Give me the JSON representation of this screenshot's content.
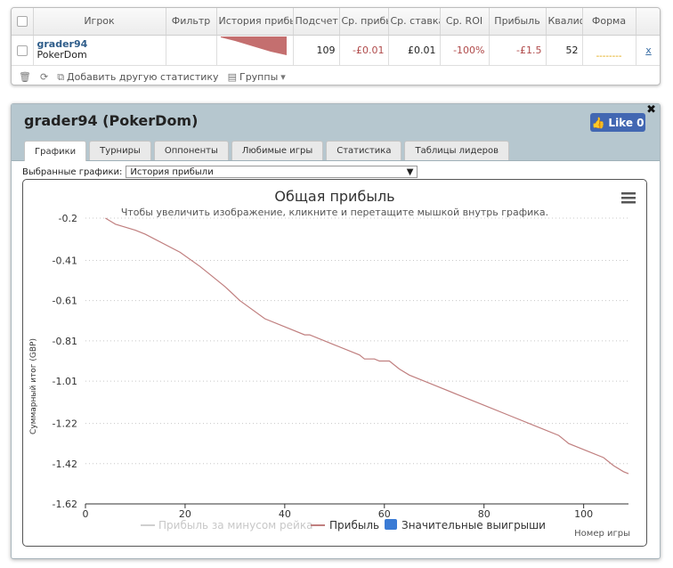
{
  "stats_table": {
    "headers": [
      "Игрок",
      "Фильтр",
      "История прибыль",
      "Подсчет",
      "Ср. прибыль",
      "Ср. ставка",
      "Ср. ROI",
      "Прибыль",
      "Квалиф",
      "Форма"
    ],
    "row": {
      "player": "grader94",
      "site": "PokerDom",
      "filter": "",
      "count": "109",
      "avg_profit": "-£0.01",
      "avg_stake": "£0.01",
      "avg_roi": "-100%",
      "profit": "-£1.5",
      "qualif": "52",
      "form": "--------",
      "remove": "x"
    },
    "footer": {
      "add_stat": "Добавить другую статистику",
      "groups": "Группы"
    }
  },
  "panel": {
    "title": "grader94 (PokerDom)",
    "like_label": "Like 0",
    "tabs": [
      "Графики",
      "Турниры",
      "Оппоненты",
      "Любимые игры",
      "Статистика",
      "Таблицы лидеров"
    ],
    "selector_label": "Выбранные графики:",
    "selector_value": "История прибыли"
  },
  "colors": {
    "profit_line": "#c07f7f",
    "rake_line": "#cfcfcf",
    "big_wins": "#3a7bd5",
    "header_bg": "#b6c7cf"
  },
  "chart_data": {
    "type": "line",
    "title": "Общая прибыль",
    "subtitle": "Чтобы увеличить изображение, кликните и перетащите мышкой внутрь графика.",
    "xlabel": "Номер игры",
    "ylabel": "Суммарный итог (GBP)",
    "xlim": [
      0,
      109
    ],
    "ylim": [
      -1.62,
      -0.2
    ],
    "x_ticks": [
      0,
      20,
      40,
      60,
      80,
      100
    ],
    "y_ticks": [
      -0.2,
      -0.41,
      -0.61,
      -0.81,
      -1.01,
      -1.22,
      -1.42,
      -1.62
    ],
    "grid": true,
    "legend_position": "bottom",
    "legend": [
      "Прибыль за минусом рейка",
      "Прибыль",
      "Значительные выигрыши"
    ],
    "series": [
      {
        "name": "Прибыль",
        "x": [
          4,
          6,
          10,
          12,
          19,
          23,
          25,
          28,
          31,
          36,
          40,
          44,
          45,
          50,
          55,
          56,
          58,
          59,
          61,
          63,
          65,
          70,
          75,
          80,
          85,
          90,
          95,
          97,
          104,
          106,
          108,
          109
        ],
        "y": [
          -0.2,
          -0.23,
          -0.26,
          -0.28,
          -0.37,
          -0.44,
          -0.48,
          -0.54,
          -0.61,
          -0.7,
          -0.74,
          -0.78,
          -0.78,
          -0.83,
          -0.88,
          -0.9,
          -0.9,
          -0.91,
          -0.91,
          -0.95,
          -0.98,
          -1.03,
          -1.08,
          -1.13,
          -1.18,
          -1.23,
          -1.28,
          -1.32,
          -1.39,
          -1.43,
          -1.46,
          -1.47
        ]
      }
    ]
  }
}
